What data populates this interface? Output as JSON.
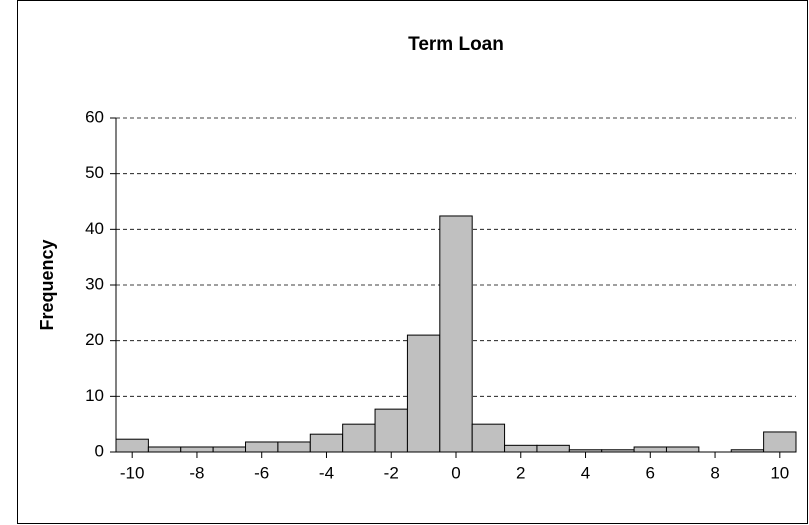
{
  "chart_data": {
    "type": "histogram",
    "title": "Term Loan",
    "y_label": "Frequency",
    "bins": [
      -10.5,
      -9.5,
      -8.5,
      -7.5,
      -6.5,
      -5.5,
      -4.5,
      -3.5,
      -2.5,
      -1.5,
      -0.5,
      0.5,
      1.5,
      2.5,
      3.5,
      4.5,
      5.5,
      6.5,
      7.5,
      8.5,
      9.5,
      10.5
    ],
    "values": [
      2.3,
      0.9,
      0.9,
      0.9,
      1.8,
      1.8,
      3.2,
      5,
      7.7,
      21,
      42.4,
      5,
      1.2,
      1.2,
      0.4,
      0.4,
      0.9,
      0.9,
      0,
      0.4,
      3.6
    ],
    "color": "#c0c0c0",
    "xlim": [
      -10.5,
      10.5
    ],
    "xticks": [
      -10,
      -8,
      -6,
      -4,
      -2,
      0,
      2,
      4,
      6,
      8,
      10
    ],
    "ylim": [
      0,
      60
    ],
    "yticks": [
      0,
      10,
      20,
      30,
      40,
      50,
      60
    ],
    "grid": true
  }
}
